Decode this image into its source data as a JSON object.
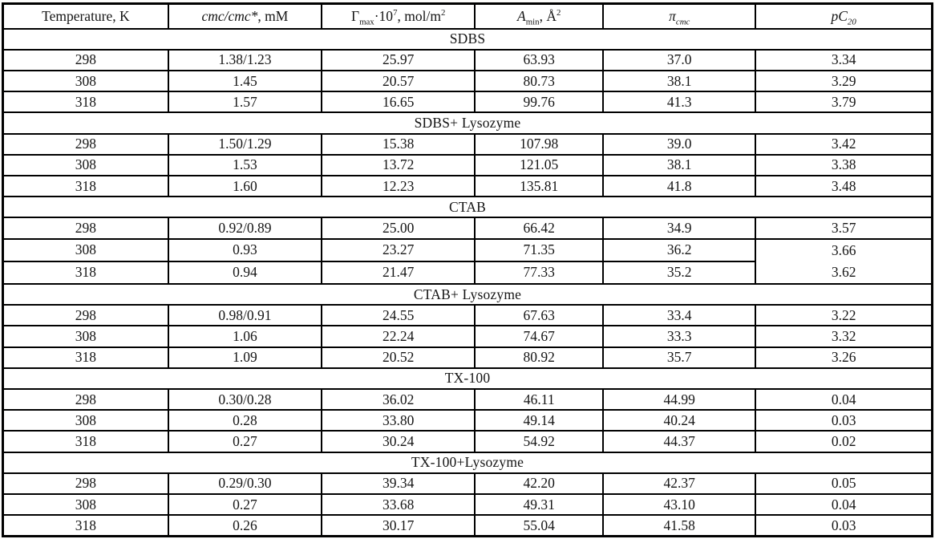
{
  "header": {
    "temperature": "Temperature, K",
    "cmc_italic": "cmc/cmc*",
    "cmc_rest": ", mM",
    "gamma_symbol": "Γ",
    "gamma_sub": "max",
    "gamma_mid": "·10",
    "gamma_sup": "7",
    "gamma_rest": ", mol/m",
    "gamma_sup2": "2",
    "amin_italic": "A",
    "amin_sub": "min",
    "amin_rest": ", Å",
    "amin_sup": "2",
    "pi_italic": "π",
    "pi_sub": "cmc",
    "pc_italic": "pC",
    "pc_sub": "20"
  },
  "chart_data": {
    "type": "table",
    "columns": [
      "Temperature, K",
      "cmc/cmc*, mM",
      "Γmax·10⁷, mol/m²",
      "Amin, Å²",
      "πcmc",
      "pC20"
    ],
    "grid": "all-borders",
    "sections": [
      {
        "title": "SDBS",
        "rows": [
          [
            "298",
            "1.38/1.23",
            "25.97",
            "63.93",
            "37.0",
            "3.34"
          ],
          [
            "308",
            "1.45",
            "20.57",
            "80.73",
            "38.1",
            "3.29"
          ],
          [
            "318",
            "1.57",
            "16.65",
            "99.76",
            "41.3",
            "3.79"
          ]
        ]
      },
      {
        "title": "SDBS+ Lysozyme",
        "rows": [
          [
            "298",
            "1.50/1.29",
            "15.38",
            "107.98",
            "39.0",
            "3.42"
          ],
          [
            "308",
            "1.53",
            "13.72",
            "121.05",
            "38.1",
            "3.38"
          ],
          [
            "318",
            "1.60",
            "12.23",
            "135.81",
            "41.8",
            "3.48"
          ]
        ]
      },
      {
        "title": "CTAB",
        "merge": {
          "col": 5,
          "rows": [
            1,
            2
          ]
        },
        "rows": [
          [
            "298",
            "0.92/0.89",
            "25.00",
            "66.42",
            "34.9",
            "3.57"
          ],
          [
            "308",
            "0.93",
            "23.27",
            "71.35",
            "36.2",
            "3.66"
          ],
          [
            "318",
            "0.94",
            "21.47",
            "77.33",
            "35.2",
            "3.62"
          ]
        ]
      },
      {
        "title": "CTAB+ Lysozyme",
        "rows": [
          [
            "298",
            "0.98/0.91",
            "24.55",
            "67.63",
            "33.4",
            "3.22"
          ],
          [
            "308",
            "1.06",
            "22.24",
            "74.67",
            "33.3",
            "3.32"
          ],
          [
            "318",
            "1.09",
            "20.52",
            "80.92",
            "35.7",
            "3.26"
          ]
        ]
      },
      {
        "title": "TX-100",
        "rows": [
          [
            "298",
            "0.30/0.28",
            "36.02",
            "46.11",
            "44.99",
            "0.04"
          ],
          [
            "308",
            "0.28",
            "33.80",
            "49.14",
            "40.24",
            "0.03"
          ],
          [
            "318",
            "0.27",
            "30.24",
            "54.92",
            "44.37",
            "0.02"
          ]
        ]
      },
      {
        "title": "TX-100+Lysozyme",
        "rows": [
          [
            "298",
            "0.29/0.30",
            "39.34",
            "42.20",
            "42.37",
            "0.05"
          ],
          [
            "308",
            "0.27",
            "33.68",
            "49.31",
            "43.10",
            "0.04"
          ],
          [
            "318",
            "0.26",
            "30.17",
            "55.04",
            "41.58",
            "0.03"
          ]
        ]
      }
    ]
  }
}
